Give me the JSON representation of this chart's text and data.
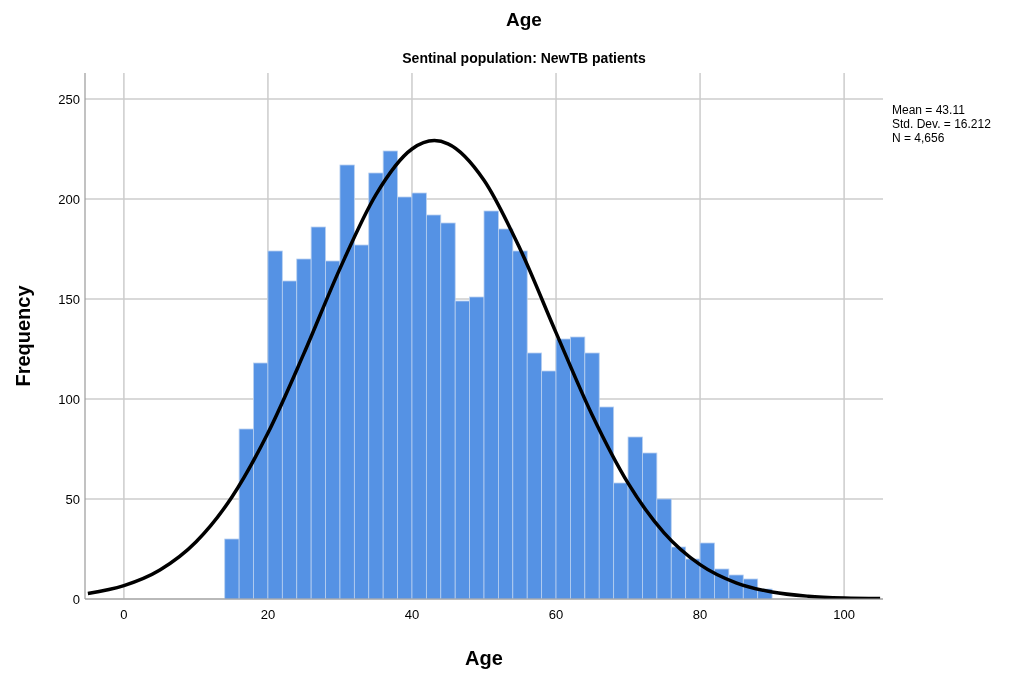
{
  "chart_data": {
    "type": "histogram",
    "title": "Age",
    "subtitle": "Sentinal population: NewTB patients",
    "xlabel": "Age",
    "ylabel": "Frequency",
    "xlim": [
      -5.4,
      105.4
    ],
    "xticks": [
      0,
      20,
      40,
      60,
      80,
      100
    ],
    "ylim": [
      0,
      263
    ],
    "yticks": [
      0,
      50,
      100,
      150,
      200,
      250
    ],
    "grid": true,
    "annotations": [
      "Mean = 43.11",
      "Std. Dev. = 16.212",
      "N = 4,656"
    ],
    "series": [
      {
        "type": "histogram",
        "color": "#5592e4",
        "bins": [
          14,
          16,
          18,
          20,
          22,
          24,
          26,
          28,
          30,
          32,
          34,
          36,
          38,
          40,
          42,
          44,
          46,
          48,
          50,
          52,
          54,
          56,
          58,
          60,
          62,
          64,
          66,
          68,
          70,
          72,
          74,
          76,
          78,
          80,
          82,
          84,
          86,
          88,
          90
        ],
        "values": [
          30,
          85,
          118,
          174,
          159,
          170,
          186,
          169,
          217,
          177,
          213,
          224,
          201,
          203,
          192,
          188,
          149,
          151,
          194,
          185,
          174,
          123,
          114,
          130,
          131,
          123,
          96,
          58,
          81,
          73,
          50,
          26,
          20,
          28,
          15,
          12,
          10,
          5
        ]
      },
      {
        "type": "line",
        "color": "#000000",
        "x": [
          -5,
          0,
          5,
          10,
          15,
          20,
          25,
          30,
          35,
          40,
          43.11,
          45,
          50,
          55,
          60,
          65,
          70,
          75,
          80,
          85,
          90,
          95,
          100,
          105
        ],
        "values": [
          2.8,
          6.7,
          14.5,
          28.5,
          51,
          83,
          122.8,
          165.2,
          202.2,
          225,
          229.2,
          227.6,
          209.4,
          175.1,
          133.2,
          92.1,
          57.9,
          33.1,
          17.2,
          8.1,
          3.5,
          1.4,
          0.5,
          0.2
        ]
      }
    ]
  }
}
